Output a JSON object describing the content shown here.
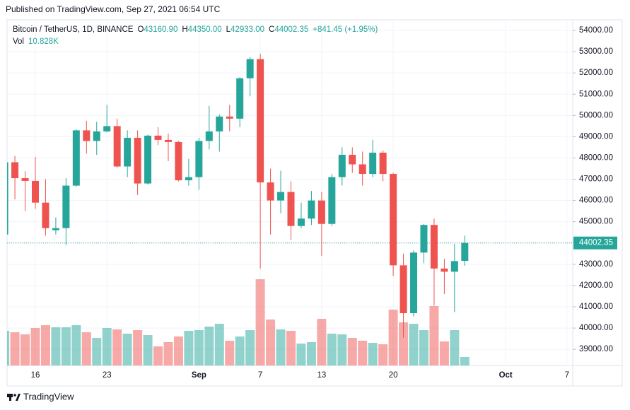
{
  "chart_data": {
    "type": "candlestick",
    "title": "Published on TradingView.com, Sep 27, 2021 06:54 UTC",
    "symbol": "Bitcoin / TetherUS, 1D, BINANCE",
    "ohlc_names": [
      "O",
      "H",
      "L",
      "C"
    ],
    "ohlc_labels": [
      "43160.90",
      "44350.00",
      "42933.00",
      "44002.35"
    ],
    "change_label": "+841.45 (+1.95%)",
    "volume_name": "Vol",
    "volume_label": "10.828K",
    "price_label": "44002.35",
    "brand": "TradingView",
    "categories": [
      null,
      null,
      null,
      "16",
      null,
      null,
      null,
      null,
      null,
      null,
      "23",
      null,
      null,
      null,
      null,
      null,
      null,
      null,
      null,
      "Sep",
      null,
      null,
      null,
      null,
      null,
      "7",
      null,
      null,
      null,
      null,
      null,
      "13",
      null,
      null,
      null,
      null,
      null,
      null,
      "20",
      null,
      null,
      null,
      null,
      null,
      null,
      null,
      null,
      null,
      null,
      "Oct",
      null,
      null,
      null,
      null,
      null,
      "7"
    ],
    "open": [
      44400,
      47800,
      47050,
      46920,
      45900,
      44600,
      44700,
      46700,
      49300,
      48800,
      49250,
      49500,
      47600,
      48950,
      46800,
      49050,
      48850,
      48750,
      46950,
      47100,
      48800,
      49250,
      49950,
      49850,
      51750,
      52650,
      46850,
      46000,
      46400,
      44800,
      45150,
      46000,
      44900,
      47100,
      48150,
      47700,
      47250,
      48250,
      47250,
      42950,
      40700,
      43550,
      44850,
      42800,
      42650,
      43160.9,
      null,
      null,
      null,
      null,
      null,
      null,
      null,
      null,
      null,
      null
    ],
    "high": [
      48000,
      48100,
      47380,
      48050,
      47000,
      45200,
      47050,
      49350,
      49750,
      49700,
      50500,
      49850,
      49300,
      49300,
      49100,
      49450,
      49150,
      48800,
      47950,
      48950,
      50450,
      50050,
      50500,
      51800,
      52750,
      52900,
      47500,
      47400,
      46900,
      45900,
      46450,
      46400,
      47250,
      48500,
      48500,
      48300,
      48850,
      48350,
      47300,
      43500,
      43650,
      44900,
      45150,
      43250,
      43950,
      44350,
      null,
      null,
      null,
      null,
      null,
      null,
      null,
      null,
      null,
      null
    ],
    "low": [
      44100,
      46050,
      45500,
      45600,
      44350,
      44400,
      43900,
      46650,
      48200,
      48150,
      49200,
      47550,
      47100,
      46250,
      46750,
      48600,
      47850,
      46900,
      46700,
      46500,
      48400,
      48300,
      49250,
      49450,
      50900,
      42800,
      44400,
      45400,
      44150,
      44700,
      44850,
      43400,
      44800,
      46700,
      47300,
      46700,
      47100,
      46900,
      42450,
      39550,
      40550,
      43050,
      41050,
      41600,
      40750,
      42933,
      null,
      null,
      null,
      null,
      null,
      null,
      null,
      null,
      null,
      null
    ],
    "close": [
      47800,
      47050,
      46920,
      45900,
      44700,
      44700,
      46700,
      49300,
      48800,
      49250,
      49500,
      47600,
      48950,
      46800,
      49050,
      48850,
      48750,
      46950,
      47100,
      48800,
      49250,
      49950,
      49850,
      51750,
      52650,
      46850,
      46000,
      46400,
      44800,
      45150,
      46000,
      44900,
      47100,
      48150,
      47700,
      47250,
      48250,
      47250,
      42950,
      40700,
      43550,
      44850,
      42800,
      42650,
      43150,
      44002.35,
      null,
      null,
      null,
      null,
      null,
      null,
      null,
      null,
      null,
      null
    ],
    "volume": [
      44100,
      42300,
      39600,
      47700,
      51300,
      48600,
      48600,
      51300,
      42300,
      35100,
      47700,
      45900,
      40500,
      45000,
      38700,
      24300,
      29700,
      36900,
      44100,
      45000,
      49500,
      53100,
      31500,
      36900,
      45000,
      109800,
      58500,
      45900,
      44100,
      27900,
      29700,
      59400,
      40500,
      39600,
      35100,
      31500,
      28800,
      27000,
      71100,
      54900,
      53100,
      45000,
      75600,
      30600,
      45000,
      10828,
      null,
      null,
      null,
      null,
      null,
      null,
      null,
      null,
      null,
      null
    ],
    "value_labels": {
      "volume": [
        null,
        null,
        null,
        null,
        null,
        null,
        null,
        null,
        null,
        null,
        null,
        null,
        null,
        null,
        null,
        null,
        null,
        null,
        null,
        null,
        null,
        null,
        null,
        null,
        null,
        null,
        null,
        null,
        null,
        null,
        null,
        null,
        null,
        null,
        null,
        null,
        null,
        null,
        null,
        null,
        null,
        null,
        null,
        null,
        null,
        "10.828K",
        null,
        null,
        null,
        null,
        null,
        null,
        null,
        null,
        null,
        null
      ]
    },
    "up_color": "#26a69a",
    "down_color": "#ef5350",
    "ylim": [
      38240,
      54500
    ],
    "yticks": [
      {
        "value": 39000,
        "label": "39000.00"
      },
      {
        "value": 40000,
        "label": "40000.00"
      },
      {
        "value": 41000,
        "label": "41000.00"
      },
      {
        "value": 42000,
        "label": "42000.00"
      },
      {
        "value": 43000,
        "label": "43000.00"
      },
      {
        "value": 44000,
        "label": "44000.00"
      },
      {
        "value": 45000,
        "label": "45000.00"
      },
      {
        "value": 46000,
        "label": "46000.00"
      },
      {
        "value": 47000,
        "label": "47000.00"
      },
      {
        "value": 48000,
        "label": "48000.00"
      },
      {
        "value": 49000,
        "label": "49000.00"
      },
      {
        "value": 50000,
        "label": "50000.00"
      },
      {
        "value": 51000,
        "label": "51000.00"
      },
      {
        "value": 52000,
        "label": "52000.00"
      },
      {
        "value": 53000,
        "label": "53000.00"
      },
      {
        "value": 54000,
        "label": "54000.00"
      }
    ],
    "grid": true
  }
}
